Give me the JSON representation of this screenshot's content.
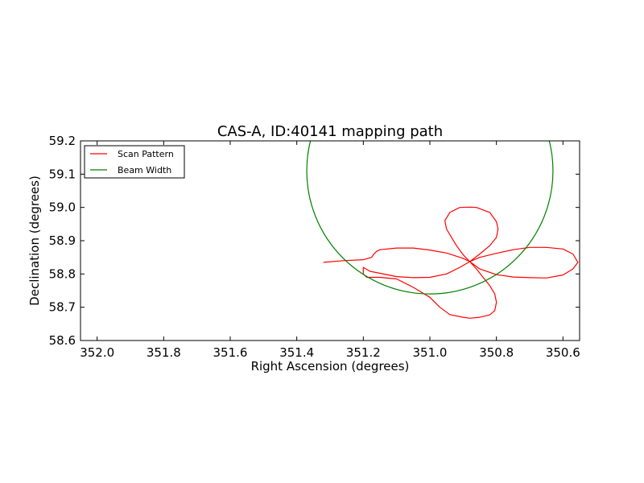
{
  "chart_data": {
    "type": "line",
    "title": "CAS-A, ID:40141 mapping path",
    "xlabel": "Right Ascension (degrees)",
    "ylabel": "Declination (degrees)",
    "xlim": [
      352.05,
      350.55
    ],
    "ylim": [
      58.6,
      59.2
    ],
    "x_reversed": true,
    "x_ticks": [
      352.0,
      351.8,
      351.6,
      351.4,
      351.2,
      351.0,
      350.8,
      350.6
    ],
    "x_tick_labels": [
      "352.0",
      "351.8",
      "351.6",
      "351.4",
      "351.2",
      "351.0",
      "350.8",
      "350.6"
    ],
    "y_ticks": [
      58.6,
      58.7,
      58.8,
      58.9,
      59.0,
      59.1,
      59.2
    ],
    "y_tick_labels": [
      "58.6",
      "58.7",
      "58.8",
      "58.9",
      "59.0",
      "59.1",
      "59.2"
    ],
    "grid": false,
    "legend_position": "top-left",
    "series": [
      {
        "name": "Scan Pattern",
        "color": "#ff0000",
        "x": [
          351.32,
          351.26,
          351.2,
          351.175,
          351.17,
          351.16,
          351.15,
          351.1,
          351.05,
          351.0,
          350.95,
          350.9,
          350.88,
          350.85,
          350.8,
          350.75,
          350.7,
          350.65,
          350.6,
          350.57,
          350.555,
          350.57,
          350.6,
          350.65,
          350.7,
          350.75,
          350.8,
          350.85,
          350.88,
          350.85,
          350.82,
          350.8,
          350.795,
          350.8,
          350.82,
          350.86,
          350.88,
          350.91,
          350.94,
          350.955,
          350.95,
          350.935,
          350.92,
          350.9,
          350.88,
          350.86,
          350.84,
          350.82,
          350.805,
          350.8,
          350.805,
          350.82,
          350.85,
          350.88,
          350.9,
          350.94,
          350.97,
          351.0,
          351.05,
          351.1,
          351.15,
          351.19,
          351.2,
          351.2,
          351.18,
          351.1,
          351.05,
          351.0,
          350.95,
          350.91,
          350.88
        ],
        "y": [
          58.835,
          58.84,
          58.843,
          58.85,
          58.858,
          58.868,
          58.873,
          58.878,
          58.878,
          58.872,
          58.863,
          58.847,
          58.837,
          58.85,
          58.862,
          58.873,
          58.88,
          58.88,
          58.875,
          58.86,
          58.835,
          58.815,
          58.797,
          58.788,
          58.789,
          58.791,
          58.798,
          58.815,
          58.837,
          58.86,
          58.885,
          58.91,
          58.935,
          58.957,
          58.985,
          59.0,
          59.001,
          59.0,
          58.985,
          58.96,
          58.935,
          58.91,
          58.885,
          58.858,
          58.837,
          58.815,
          58.79,
          58.765,
          58.74,
          58.715,
          58.69,
          58.677,
          58.67,
          58.667,
          58.67,
          58.678,
          58.7,
          58.73,
          58.76,
          58.785,
          58.79,
          58.79,
          58.8,
          58.82,
          58.808,
          58.792,
          58.789,
          58.79,
          58.8,
          58.82,
          58.837
        ]
      },
      {
        "name": "Beam Width",
        "color": "#008000",
        "shape": "circle",
        "center": [
          351.0,
          59.11
        ],
        "radius_dec": 0.37
      }
    ]
  }
}
